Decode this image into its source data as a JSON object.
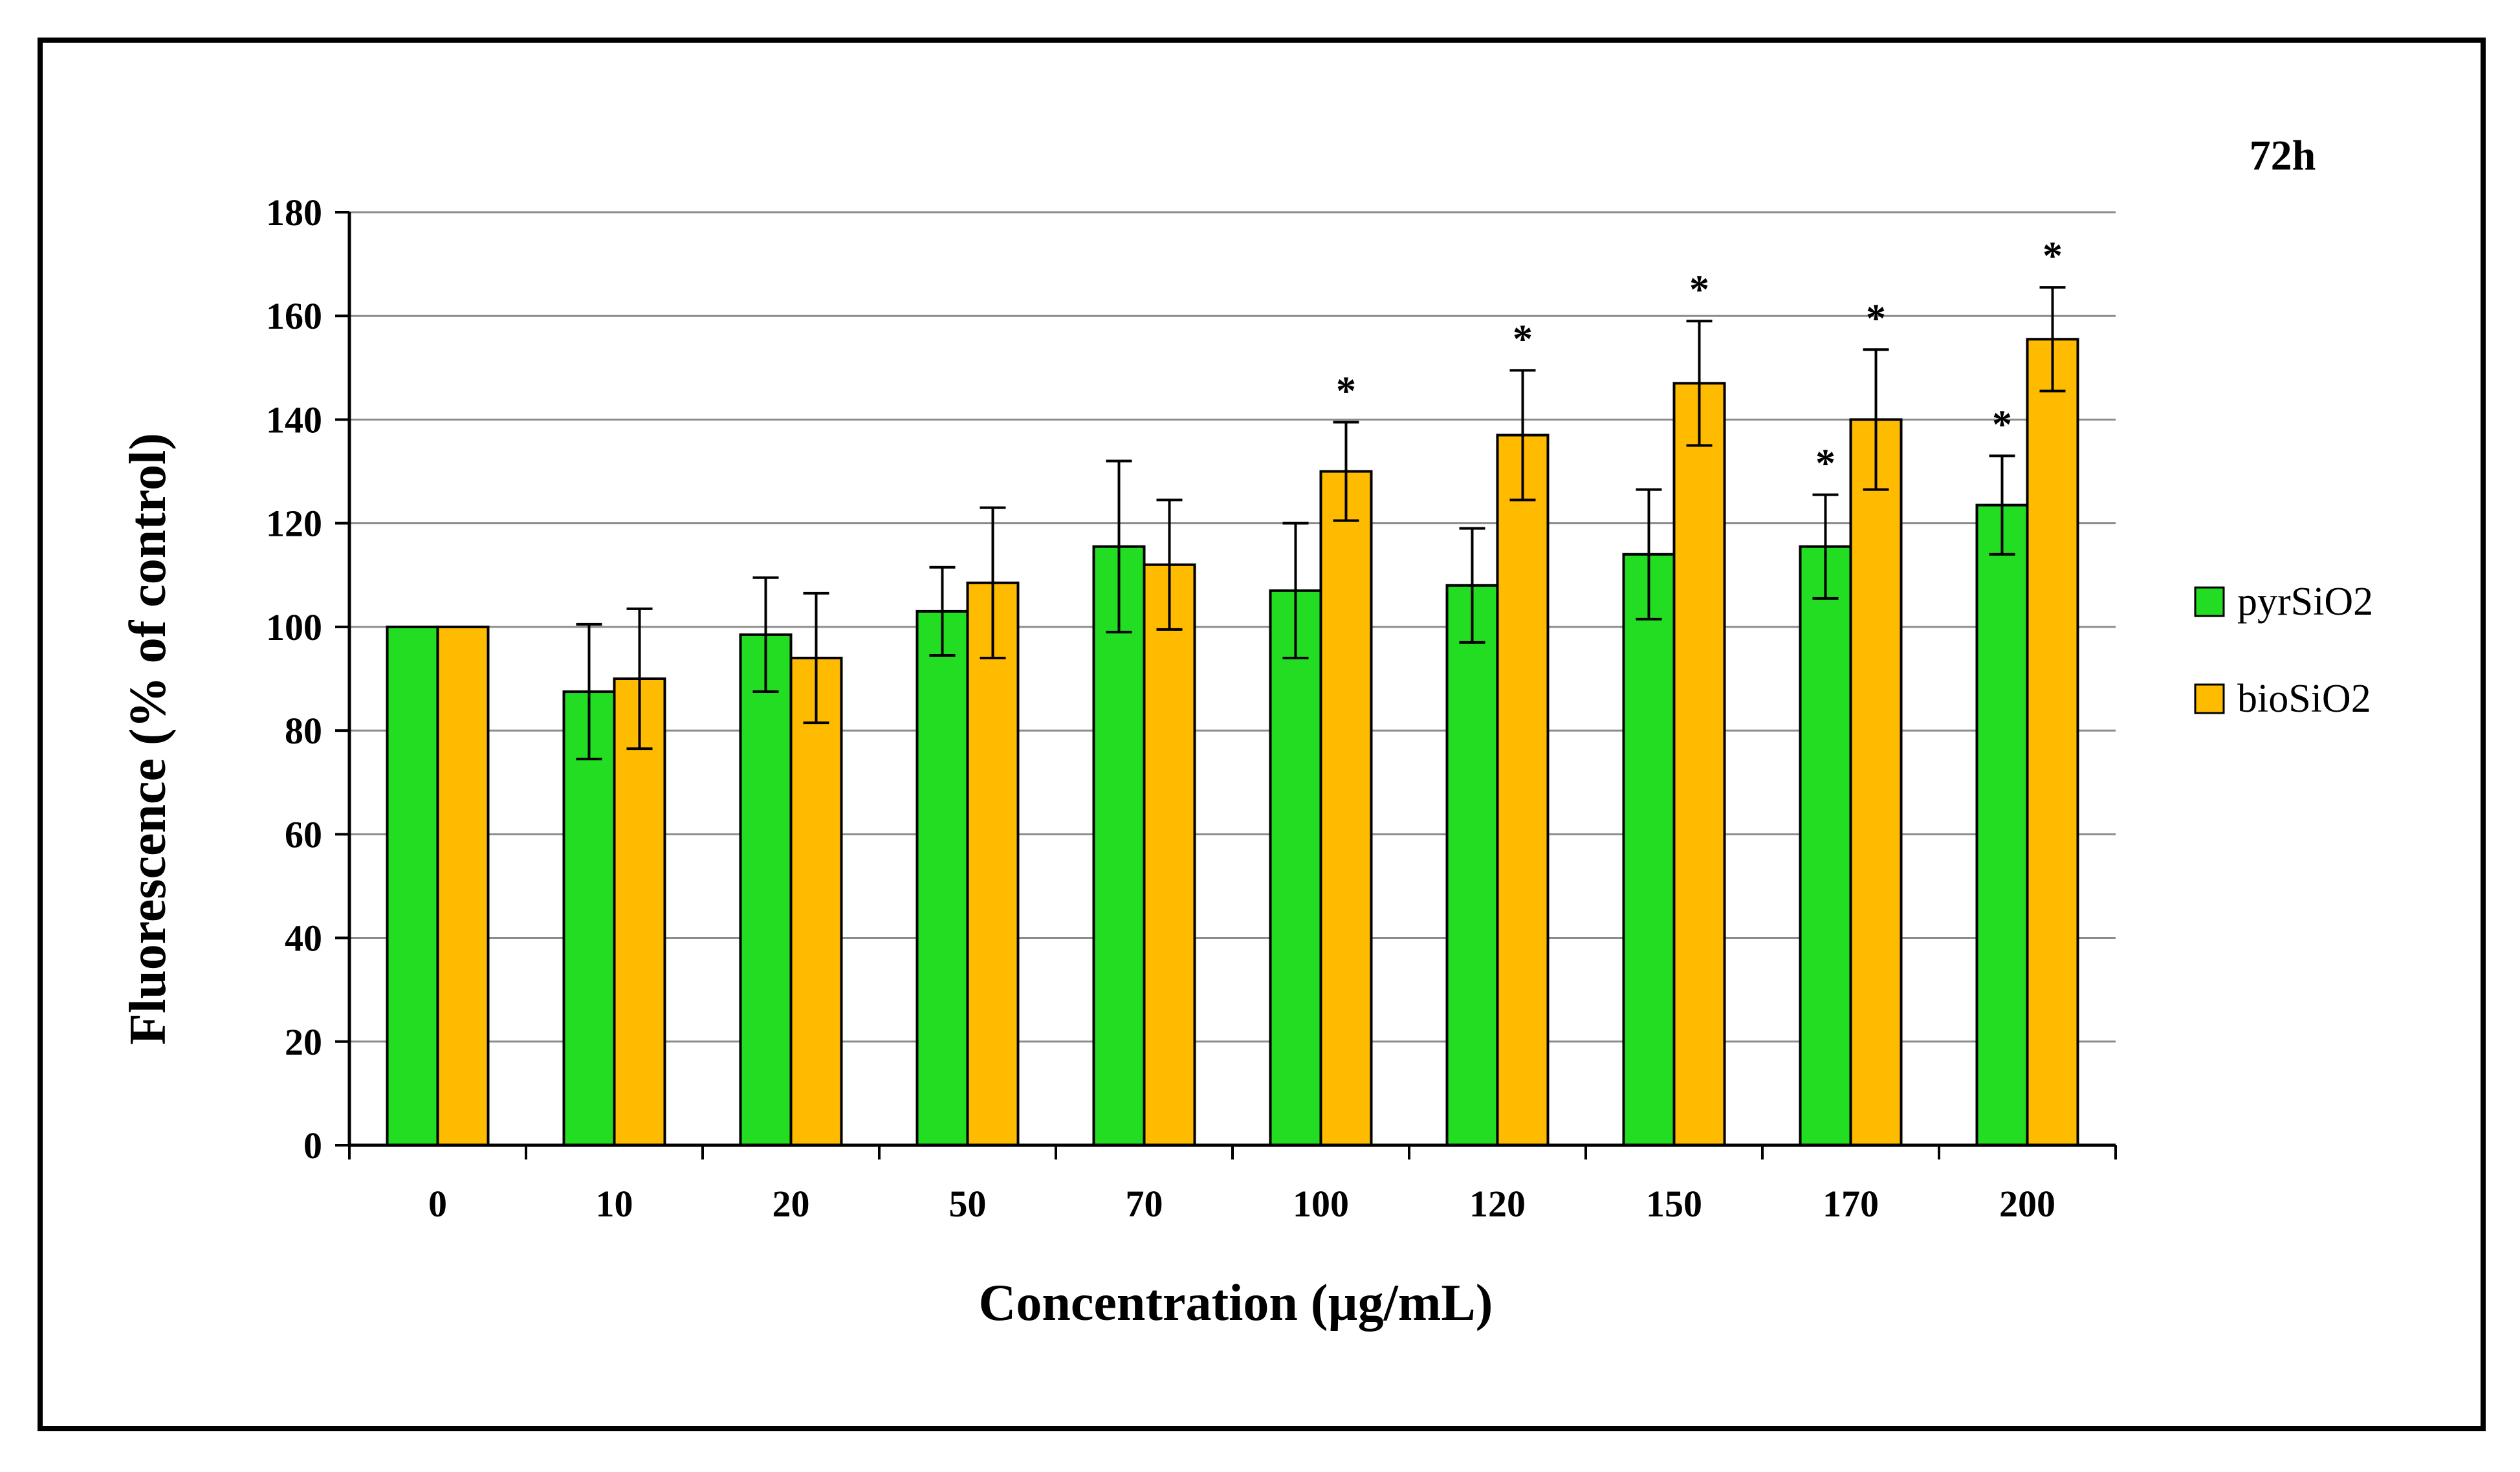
{
  "chart_data": {
    "type": "bar",
    "title": "72h",
    "xlabel": "Concentration (µg/mL)",
    "ylabel": "Fluorescence (% of control)",
    "ylim": [
      0,
      180
    ],
    "yticks": [
      0,
      20,
      40,
      60,
      80,
      100,
      120,
      140,
      160,
      180
    ],
    "grid": true,
    "legend_position": "right",
    "categories": [
      "0",
      "10",
      "20",
      "50",
      "70",
      "100",
      "120",
      "150",
      "170",
      "200"
    ],
    "series": [
      {
        "name": "pyrSiO2",
        "color": "#22dd22",
        "values": [
          100,
          87.5,
          98.5,
          103,
          115.5,
          107,
          108,
          114,
          115.5,
          123.5
        ],
        "errors": [
          0,
          13,
          11,
          8.5,
          16.5,
          13,
          11,
          12.5,
          10,
          9.5
        ],
        "significant": [
          false,
          false,
          false,
          false,
          false,
          false,
          false,
          false,
          true,
          true
        ]
      },
      {
        "name": "bioSiO2",
        "color": "#ffbb00",
        "values": [
          100,
          90,
          94,
          108.5,
          112,
          130,
          137,
          147,
          140,
          155.5
        ],
        "errors": [
          0,
          13.5,
          12.5,
          14.5,
          12.5,
          9.5,
          12.5,
          12,
          13.5,
          10
        ],
        "significant": [
          false,
          false,
          false,
          false,
          false,
          true,
          true,
          true,
          true,
          true
        ]
      }
    ],
    "significance_marker": "*"
  }
}
